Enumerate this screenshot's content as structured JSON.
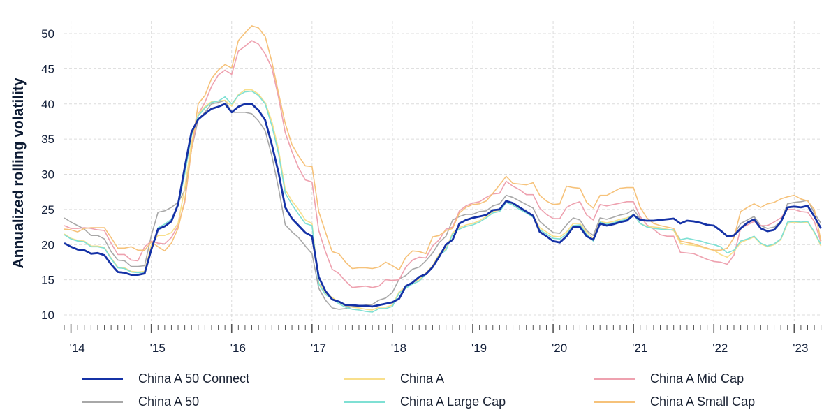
{
  "chart_data": {
    "type": "line",
    "title": "",
    "xlabel": "",
    "ylabel": "Annualized rolling volatility",
    "ylim": [
      10,
      50
    ],
    "yticks": [
      "10",
      "15",
      "20",
      "25",
      "30",
      "35",
      "40",
      "45",
      "50"
    ],
    "ytick_values": [
      10,
      15,
      20,
      25,
      30,
      35,
      40,
      45,
      50
    ],
    "x_start": "Dec 2013",
    "x_end": "May 2023",
    "x_frequency": "monthly",
    "xtick_labels": [
      "'14",
      "'15",
      "'16",
      "'17",
      "'18",
      "'19",
      "'20",
      "'21",
      "'22",
      "'23"
    ],
    "grid": true,
    "legend_position": "bottom",
    "series": [
      {
        "name": "China A 50 Connect",
        "color": "#1532a6",
        "values": [
          20.2,
          19.7,
          19.3,
          19.2,
          18.7,
          18.8,
          18.5,
          17.2,
          16.1,
          16.0,
          15.7,
          15.7,
          15.9,
          19.3,
          22.2,
          22.6,
          23.3,
          25.7,
          31.0,
          36.0,
          37.8,
          38.6,
          39.3,
          39.6,
          40.0,
          38.8,
          39.6,
          40.0,
          40.0,
          39.1,
          37.7,
          34.2,
          30.2,
          25.3,
          23.7,
          22.7,
          21.7,
          21.2,
          15.4,
          13.4,
          12.2,
          11.9,
          11.4,
          11.4,
          11.3,
          11.3,
          11.2,
          11.4,
          11.6,
          11.8,
          12.3,
          14.1,
          14.6,
          15.4,
          15.8,
          16.8,
          18.3,
          20.0,
          20.7,
          23.0,
          23.5,
          23.8,
          24.0,
          24.2,
          24.9,
          25.0,
          26.2,
          25.9,
          25.3,
          24.7,
          24.1,
          21.8,
          21.2,
          20.5,
          20.3,
          21.2,
          22.5,
          22.5,
          21.2,
          20.7,
          23.0,
          22.7,
          22.9,
          23.2,
          23.4,
          24.2,
          23.5,
          23.4,
          23.4,
          23.5,
          23.6,
          23.7,
          23.0,
          23.4,
          23.3,
          23.1,
          22.8,
          22.7,
          22.0,
          21.2,
          21.3,
          22.3,
          23.1,
          23.6,
          22.3,
          21.9,
          22.1,
          23.2,
          25.3,
          25.4,
          25.3,
          25.5,
          24.0,
          22.3
        ]
      },
      {
        "name": "China A 50",
        "color": "#a8a8a8",
        "values": [
          23.8,
          23.2,
          22.7,
          22.2,
          21.3,
          21.3,
          20.8,
          19.0,
          17.8,
          17.7,
          16.9,
          16.9,
          17.0,
          21.3,
          24.6,
          24.8,
          25.3,
          26.0,
          27.7,
          33.5,
          37.8,
          38.8,
          40.0,
          40.2,
          40.5,
          38.8,
          38.8,
          38.8,
          38.6,
          37.6,
          36.2,
          32.6,
          28.0,
          22.8,
          21.8,
          21.0,
          19.8,
          18.7,
          13.8,
          12.1,
          11.0,
          10.8,
          10.9,
          11.2,
          11.3,
          11.4,
          11.5,
          12.1,
          12.4,
          13.2,
          15.1,
          15.6,
          16.5,
          16.8,
          17.7,
          18.8,
          20.3,
          21.2,
          23.5,
          24.0,
          24.3,
          24.3,
          24.7,
          24.8,
          25.5,
          25.8,
          27.0,
          26.7,
          26.2,
          25.7,
          25.2,
          23.3,
          22.5,
          21.7,
          21.6,
          22.8,
          23.8,
          23.5,
          22.0,
          21.3,
          23.8,
          23.6,
          23.9,
          24.2,
          24.4,
          25.0,
          23.7,
          23.4,
          23.4,
          23.5,
          23.6,
          23.7,
          23.0,
          23.4,
          23.3,
          23.1,
          22.8,
          22.7,
          22.0,
          21.2,
          21.4,
          23.0,
          23.5,
          24.0,
          22.7,
          22.3,
          22.5,
          23.3,
          25.8,
          26.0,
          26.1,
          26.3,
          24.5,
          23.0
        ]
      },
      {
        "name": "China A",
        "color": "#f8df8c",
        "values": [
          21.5,
          20.9,
          20.6,
          20.5,
          19.8,
          19.8,
          19.6,
          18.1,
          16.8,
          16.7,
          16.2,
          16.1,
          16.2,
          20.0,
          21.3,
          21.3,
          21.7,
          23.0,
          28.0,
          34.5,
          38.5,
          39.6,
          40.3,
          40.4,
          40.5,
          39.7,
          41.3,
          42.0,
          42.0,
          41.4,
          40.2,
          37.5,
          33.5,
          27.8,
          26.2,
          25.0,
          23.5,
          23.0,
          14.6,
          13.1,
          12.5,
          11.8,
          11.3,
          11.1,
          11.0,
          10.8,
          10.7,
          11.1,
          11.1,
          11.4,
          13.3,
          14.0,
          14.6,
          15.0,
          16.0,
          17.0,
          18.7,
          19.4,
          21.7,
          22.4,
          22.8,
          23.0,
          23.4,
          24.0,
          24.7,
          24.9,
          26.1,
          25.8,
          25.2,
          24.7,
          24.1,
          22.4,
          21.8,
          21.2,
          21.1,
          21.8,
          23.0,
          23.0,
          21.8,
          20.9,
          23.3,
          23.1,
          23.3,
          23.6,
          23.8,
          24.3,
          23.0,
          22.6,
          22.5,
          22.4,
          22.2,
          22.0,
          20.2,
          20.0,
          19.9,
          19.7,
          19.4,
          19.2,
          18.6,
          18.2,
          19.0,
          20.3,
          20.7,
          21.1,
          20.1,
          19.7,
          20.0,
          20.7,
          23.0,
          23.2,
          23.1,
          23.2,
          21.7,
          19.8
        ]
      },
      {
        "name": "China A Large Cap",
        "color": "#7fe0d4",
        "values": [
          21.4,
          20.8,
          20.5,
          20.4,
          19.7,
          19.7,
          19.5,
          18.0,
          16.7,
          16.6,
          16.1,
          16.0,
          16.1,
          19.3,
          22.4,
          22.9,
          23.6,
          25.5,
          30.0,
          35.5,
          38.3,
          39.4,
          40.2,
          40.4,
          41.0,
          40.0,
          41.2,
          41.7,
          41.8,
          41.2,
          40.0,
          36.9,
          32.9,
          27.3,
          25.7,
          24.3,
          23.0,
          22.7,
          14.4,
          12.9,
          12.3,
          11.6,
          11.1,
          10.8,
          10.7,
          10.5,
          10.4,
          10.9,
          10.9,
          11.2,
          13.1,
          13.8,
          14.4,
          14.8,
          15.8,
          16.8,
          18.5,
          19.2,
          21.5,
          22.2,
          22.6,
          22.8,
          23.2,
          23.8,
          24.5,
          24.7,
          26.0,
          25.6,
          25.0,
          24.5,
          23.9,
          22.1,
          21.5,
          20.9,
          20.8,
          21.5,
          22.7,
          22.8,
          21.5,
          20.5,
          23.2,
          22.9,
          23.1,
          23.4,
          23.6,
          24.3,
          23.0,
          22.5,
          22.3,
          22.2,
          22.1,
          22.1,
          20.7,
          20.9,
          20.7,
          20.5,
          20.2,
          20.0,
          19.7,
          18.8,
          19.2,
          20.5,
          20.8,
          21.2,
          20.2,
          19.8,
          20.1,
          20.8,
          23.2,
          23.3,
          23.2,
          23.3,
          21.8,
          20.0
        ]
      },
      {
        "name": "China A Mid Cap",
        "color": "#eea1af",
        "values": [
          22.7,
          22.3,
          22.3,
          22.4,
          22.3,
          22.1,
          22.0,
          20.2,
          18.6,
          18.6,
          17.8,
          17.7,
          19.7,
          20.5,
          20.2,
          20.1,
          21.0,
          22.7,
          26.0,
          33.5,
          38.5,
          40.2,
          42.5,
          44.1,
          44.8,
          44.2,
          47.5,
          48.2,
          49.0,
          48.5,
          47.1,
          45.1,
          40.9,
          35.9,
          33.2,
          30.9,
          29.2,
          28.9,
          22.0,
          19.0,
          16.5,
          15.9,
          14.8,
          13.9,
          14.0,
          14.1,
          13.9,
          14.1,
          15.0,
          14.9,
          15.0,
          16.8,
          17.8,
          18.2,
          18.1,
          19.8,
          20.7,
          22.2,
          22.5,
          24.8,
          25.5,
          25.9,
          26.1,
          26.7,
          27.2,
          27.3,
          29.0,
          28.3,
          27.8,
          27.1,
          27.1,
          25.2,
          24.3,
          23.7,
          23.7,
          25.3,
          25.8,
          26.1,
          24.2,
          23.5,
          25.7,
          25.5,
          25.7,
          25.9,
          26.1,
          26.1,
          24.0,
          22.8,
          22.2,
          21.4,
          21.2,
          21.2,
          18.9,
          18.8,
          18.7,
          18.3,
          17.9,
          17.6,
          17.5,
          17.2,
          18.5,
          22.3,
          22.8,
          23.3,
          22.7,
          22.7,
          23.2,
          23.8,
          25.0,
          25.0,
          24.7,
          24.6,
          23.3,
          20.3
        ]
      },
      {
        "name": "China A Small Cap",
        "color": "#f6c27a",
        "values": [
          22.2,
          22.1,
          21.8,
          22.3,
          22.4,
          22.4,
          22.4,
          21.0,
          19.5,
          19.5,
          19.7,
          19.2,
          19.2,
          20.4,
          19.7,
          19.1,
          20.2,
          22.3,
          26.3,
          33.5,
          40.0,
          41.2,
          43.6,
          44.8,
          45.6,
          45.1,
          49.0,
          50.1,
          51.1,
          50.8,
          49.6,
          46.0,
          41.5,
          37.2,
          34.2,
          32.6,
          31.2,
          31.1,
          24.7,
          21.8,
          19.0,
          18.7,
          17.5,
          16.6,
          16.7,
          16.7,
          16.6,
          16.8,
          17.5,
          17.0,
          16.4,
          18.2,
          19.1,
          19.0,
          18.7,
          21.1,
          21.3,
          22.0,
          22.3,
          24.5,
          25.3,
          25.7,
          25.8,
          26.2,
          27.3,
          28.5,
          29.7,
          28.7,
          28.6,
          28.5,
          28.8,
          27.0,
          26.2,
          25.7,
          25.8,
          28.3,
          28.1,
          28.0,
          26.0,
          25.2,
          27.0,
          27.0,
          27.5,
          28.0,
          28.1,
          28.1,
          25.3,
          23.8,
          23.0,
          22.7,
          22.5,
          22.3,
          20.5,
          20.3,
          20.1,
          19.8,
          19.5,
          19.2,
          19.2,
          19.5,
          21.0,
          24.7,
          25.3,
          25.8,
          25.3,
          25.8,
          26.0,
          26.5,
          26.8,
          27.0,
          26.5,
          26.2,
          25.0,
          20.5
        ]
      }
    ]
  },
  "legend": {
    "items": [
      {
        "label": "China A 50 Connect",
        "color": "#1532a6"
      },
      {
        "label": "China A",
        "color": "#f8df8c"
      },
      {
        "label": "China A Mid Cap",
        "color": "#eea1af"
      },
      {
        "label": "China A 50",
        "color": "#a8a8a8"
      },
      {
        "label": "China A Large Cap",
        "color": "#7fe0d4"
      },
      {
        "label": "China A Small Cap",
        "color": "#f6c27a"
      }
    ]
  }
}
